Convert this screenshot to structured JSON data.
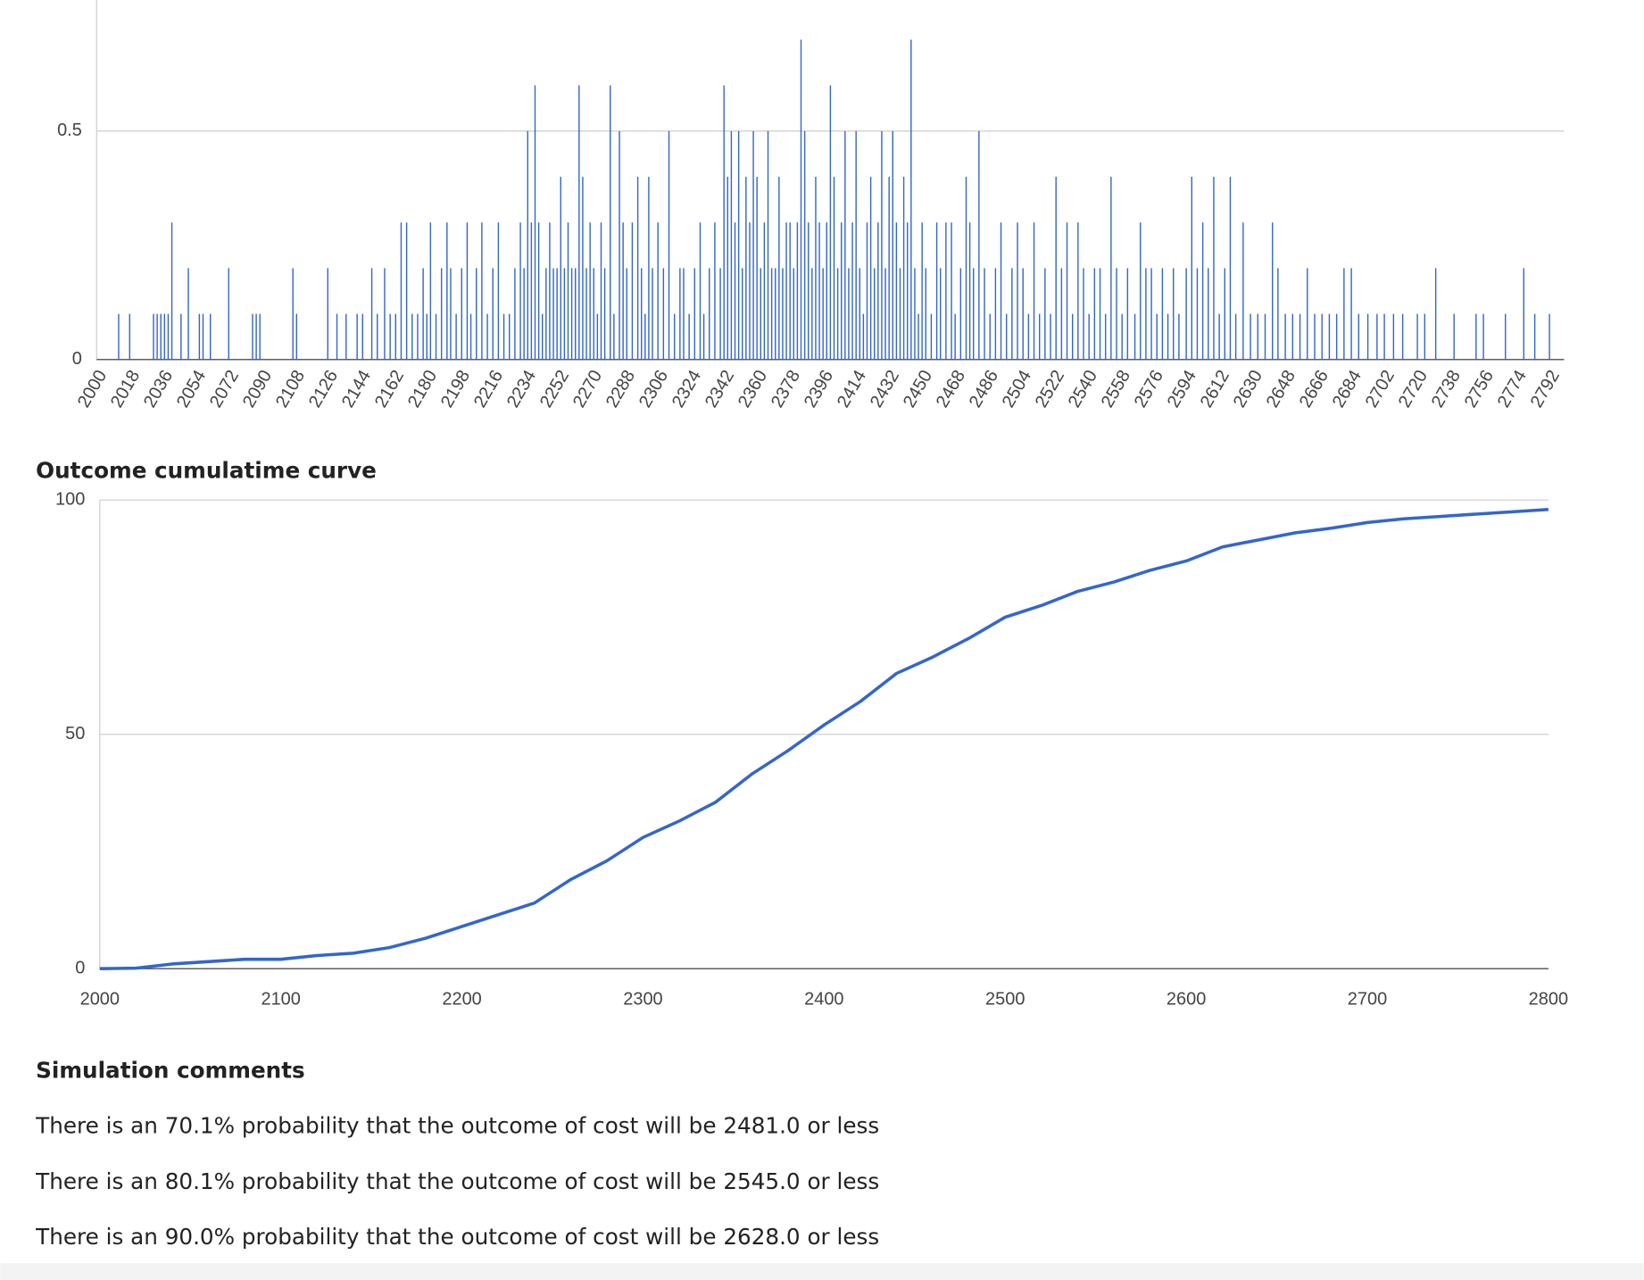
{
  "chart_data": [
    {
      "type": "bar",
      "color": "#3366cc",
      "x": [
        2012,
        2018,
        2031,
        2033,
        2035,
        2037,
        2039,
        2041,
        2046,
        2050,
        2056,
        2058,
        2062,
        2072,
        2085,
        2087,
        2089,
        2107,
        2109,
        2126,
        2131,
        2136,
        2142,
        2145,
        2150,
        2153,
        2157,
        2160,
        2163,
        2166,
        2169,
        2172,
        2175,
        2178,
        2180,
        2182,
        2185,
        2188,
        2191,
        2193,
        2196,
        2199,
        2202,
        2204,
        2207,
        2210,
        2213,
        2216,
        2219,
        2222,
        2225,
        2228,
        2231,
        2233,
        2235,
        2237,
        2239,
        2241,
        2243,
        2245,
        2247,
        2249,
        2251,
        2253,
        2255,
        2257,
        2259,
        2261,
        2263,
        2265,
        2267,
        2269,
        2271,
        2273,
        2275,
        2277,
        2280,
        2282,
        2285,
        2287,
        2289,
        2292,
        2295,
        2297,
        2299,
        2301,
        2303,
        2306,
        2309,
        2312,
        2315,
        2318,
        2320,
        2323,
        2326,
        2329,
        2331,
        2334,
        2337,
        2340,
        2342,
        2344,
        2346,
        2348,
        2350,
        2352,
        2354,
        2356,
        2358,
        2360,
        2362,
        2364,
        2366,
        2368,
        2370,
        2372,
        2374,
        2376,
        2378,
        2380,
        2382,
        2384,
        2386,
        2388,
        2390,
        2392,
        2394,
        2396,
        2398,
        2400,
        2402,
        2404,
        2406,
        2408,
        2410,
        2412,
        2414,
        2416,
        2418,
        2420,
        2422,
        2424,
        2426,
        2428,
        2430,
        2432,
        2434,
        2436,
        2438,
        2440,
        2442,
        2444,
        2446,
        2448,
        2450,
        2452,
        2455,
        2458,
        2460,
        2463,
        2466,
        2468,
        2471,
        2474,
        2476,
        2478,
        2481,
        2484,
        2487,
        2490,
        2493,
        2496,
        2499,
        2502,
        2505,
        2508,
        2511,
        2514,
        2517,
        2520,
        2523,
        2526,
        2529,
        2532,
        2535,
        2538,
        2541,
        2544,
        2547,
        2550,
        2553,
        2556,
        2559,
        2562,
        2566,
        2569,
        2572,
        2575,
        2578,
        2581,
        2584,
        2587,
        2590,
        2594,
        2597,
        2600,
        2603,
        2606,
        2609,
        2612,
        2615,
        2618,
        2621,
        2625,
        2629,
        2633,
        2637,
        2641,
        2644,
        2648,
        2652,
        2656,
        2660,
        2664,
        2668,
        2672,
        2676,
        2680,
        2684,
        2688,
        2693,
        2698,
        2702,
        2707,
        2712,
        2720,
        2724,
        2730,
        2740,
        2752,
        2756,
        2768,
        2778,
        2784,
        2792
      ],
      "values": [
        0.1,
        0.1,
        0.1,
        0.1,
        0.1,
        0.1,
        0.1,
        0.3,
        0.1,
        0.2,
        0.1,
        0.1,
        0.1,
        0.2,
        0.1,
        0.1,
        0.1,
        0.2,
        0.1,
        0.2,
        0.1,
        0.1,
        0.1,
        0.1,
        0.2,
        0.1,
        0.2,
        0.1,
        0.1,
        0.3,
        0.3,
        0.1,
        0.1,
        0.2,
        0.1,
        0.3,
        0.1,
        0.2,
        0.3,
        0.2,
        0.1,
        0.2,
        0.3,
        0.1,
        0.2,
        0.3,
        0.1,
        0.2,
        0.3,
        0.1,
        0.1,
        0.2,
        0.3,
        0.2,
        0.5,
        0.3,
        0.6,
        0.3,
        0.1,
        0.2,
        0.3,
        0.2,
        0.2,
        0.4,
        0.2,
        0.3,
        0.2,
        0.2,
        0.6,
        0.4,
        0.2,
        0.3,
        0.2,
        0.1,
        0.3,
        0.2,
        0.6,
        0.1,
        0.5,
        0.3,
        0.2,
        0.3,
        0.4,
        0.2,
        0.1,
        0.4,
        0.2,
        0.3,
        0.2,
        0.5,
        0.1,
        0.2,
        0.2,
        0.1,
        0.2,
        0.3,
        0.1,
        0.2,
        0.3,
        0.2,
        0.6,
        0.4,
        0.5,
        0.3,
        0.5,
        0.2,
        0.4,
        0.3,
        0.5,
        0.4,
        0.2,
        0.3,
        0.5,
        0.2,
        0.2,
        0.4,
        0.2,
        0.3,
        0.3,
        0.2,
        0.3,
        0.7,
        0.5,
        0.3,
        0.2,
        0.4,
        0.3,
        0.2,
        0.3,
        0.6,
        0.4,
        0.2,
        0.3,
        0.5,
        0.2,
        0.3,
        0.5,
        0.2,
        0.1,
        0.3,
        0.4,
        0.2,
        0.3,
        0.5,
        0.2,
        0.4,
        0.5,
        0.3,
        0.2,
        0.4,
        0.3,
        0.7,
        0.2,
        0.1,
        0.3,
        0.2,
        0.1,
        0.3,
        0.2,
        0.3,
        0.3,
        0.1,
        0.2,
        0.4,
        0.3,
        0.2,
        0.5,
        0.2,
        0.1,
        0.2,
        0.3,
        0.1,
        0.2,
        0.3,
        0.2,
        0.1,
        0.3,
        0.1,
        0.2,
        0.1,
        0.4,
        0.2,
        0.3,
        0.1,
        0.3,
        0.2,
        0.1,
        0.2,
        0.2,
        0.1,
        0.4,
        0.2,
        0.1,
        0.2,
        0.1,
        0.3,
        0.2,
        0.2,
        0.1,
        0.2,
        0.1,
        0.2,
        0.1,
        0.2,
        0.4,
        0.2,
        0.3,
        0.2,
        0.4,
        0.1,
        0.2,
        0.4,
        0.1,
        0.3,
        0.1,
        0.1,
        0.1,
        0.3,
        0.2,
        0.1,
        0.1,
        0.1,
        0.2,
        0.1,
        0.1,
        0.1,
        0.1,
        0.2,
        0.2,
        0.1,
        0.1,
        0.1,
        0.1,
        0.1,
        0.1,
        0.1,
        0.1,
        0.2,
        0.1,
        0.1,
        0.1,
        0.1,
        0.2,
        0.1,
        0.1
      ],
      "xlim": [
        2000,
        2800
      ],
      "xticks": [
        2000,
        2018,
        2036,
        2054,
        2072,
        2090,
        2108,
        2126,
        2144,
        2162,
        2180,
        2198,
        2216,
        2234,
        2252,
        2270,
        2288,
        2306,
        2324,
        2342,
        2360,
        2378,
        2396,
        2414,
        2432,
        2450,
        2468,
        2486,
        2504,
        2522,
        2540,
        2558,
        2576,
        2594,
        2612,
        2630,
        2648,
        2666,
        2684,
        2702,
        2720,
        2738,
        2756,
        2774,
        2792
      ],
      "ylim": [
        0,
        0.78
      ],
      "yticks": [
        0,
        0.5
      ],
      "grid": true
    },
    {
      "type": "line",
      "title": "Outcome cumulatime curve",
      "color": "#3366cc",
      "x": [
        2000,
        2020,
        2040,
        2060,
        2080,
        2100,
        2120,
        2140,
        2160,
        2180,
        2200,
        2220,
        2240,
        2260,
        2280,
        2300,
        2320,
        2340,
        2360,
        2380,
        2400,
        2420,
        2440,
        2460,
        2480,
        2500,
        2520,
        2540,
        2560,
        2580,
        2600,
        2620,
        2640,
        2660,
        2680,
        2700,
        2720,
        2740,
        2760,
        2780,
        2800
      ],
      "values": [
        0,
        0.1,
        1,
        1.5,
        2,
        2,
        2.8,
        3.3,
        4.5,
        6.5,
        9,
        11.5,
        14,
        19,
        23,
        28,
        31.5,
        35.5,
        41.5,
        46.5,
        52,
        57,
        63,
        66.5,
        70.5,
        75,
        77.5,
        80.5,
        82.5,
        85,
        87,
        90,
        91.5,
        93,
        94,
        95.2,
        96,
        96.5,
        97,
        97.5,
        98
      ],
      "xlim": [
        2000,
        2800
      ],
      "xticks": [
        2000,
        2100,
        2200,
        2300,
        2400,
        2500,
        2600,
        2700,
        2800
      ],
      "ylim": [
        0,
        100
      ],
      "yticks": [
        0,
        50,
        100
      ],
      "grid": true
    }
  ],
  "simulation_comments": {
    "title": "Simulation comments",
    "lines": [
      "There is an 70.1% probability that the outcome of cost will be 2481.0 or less",
      "There is an 80.1% probability that the outcome of cost will be 2545.0 or less",
      "There is an 90.0% probability that the outcome of cost will be 2628.0 or less"
    ]
  }
}
